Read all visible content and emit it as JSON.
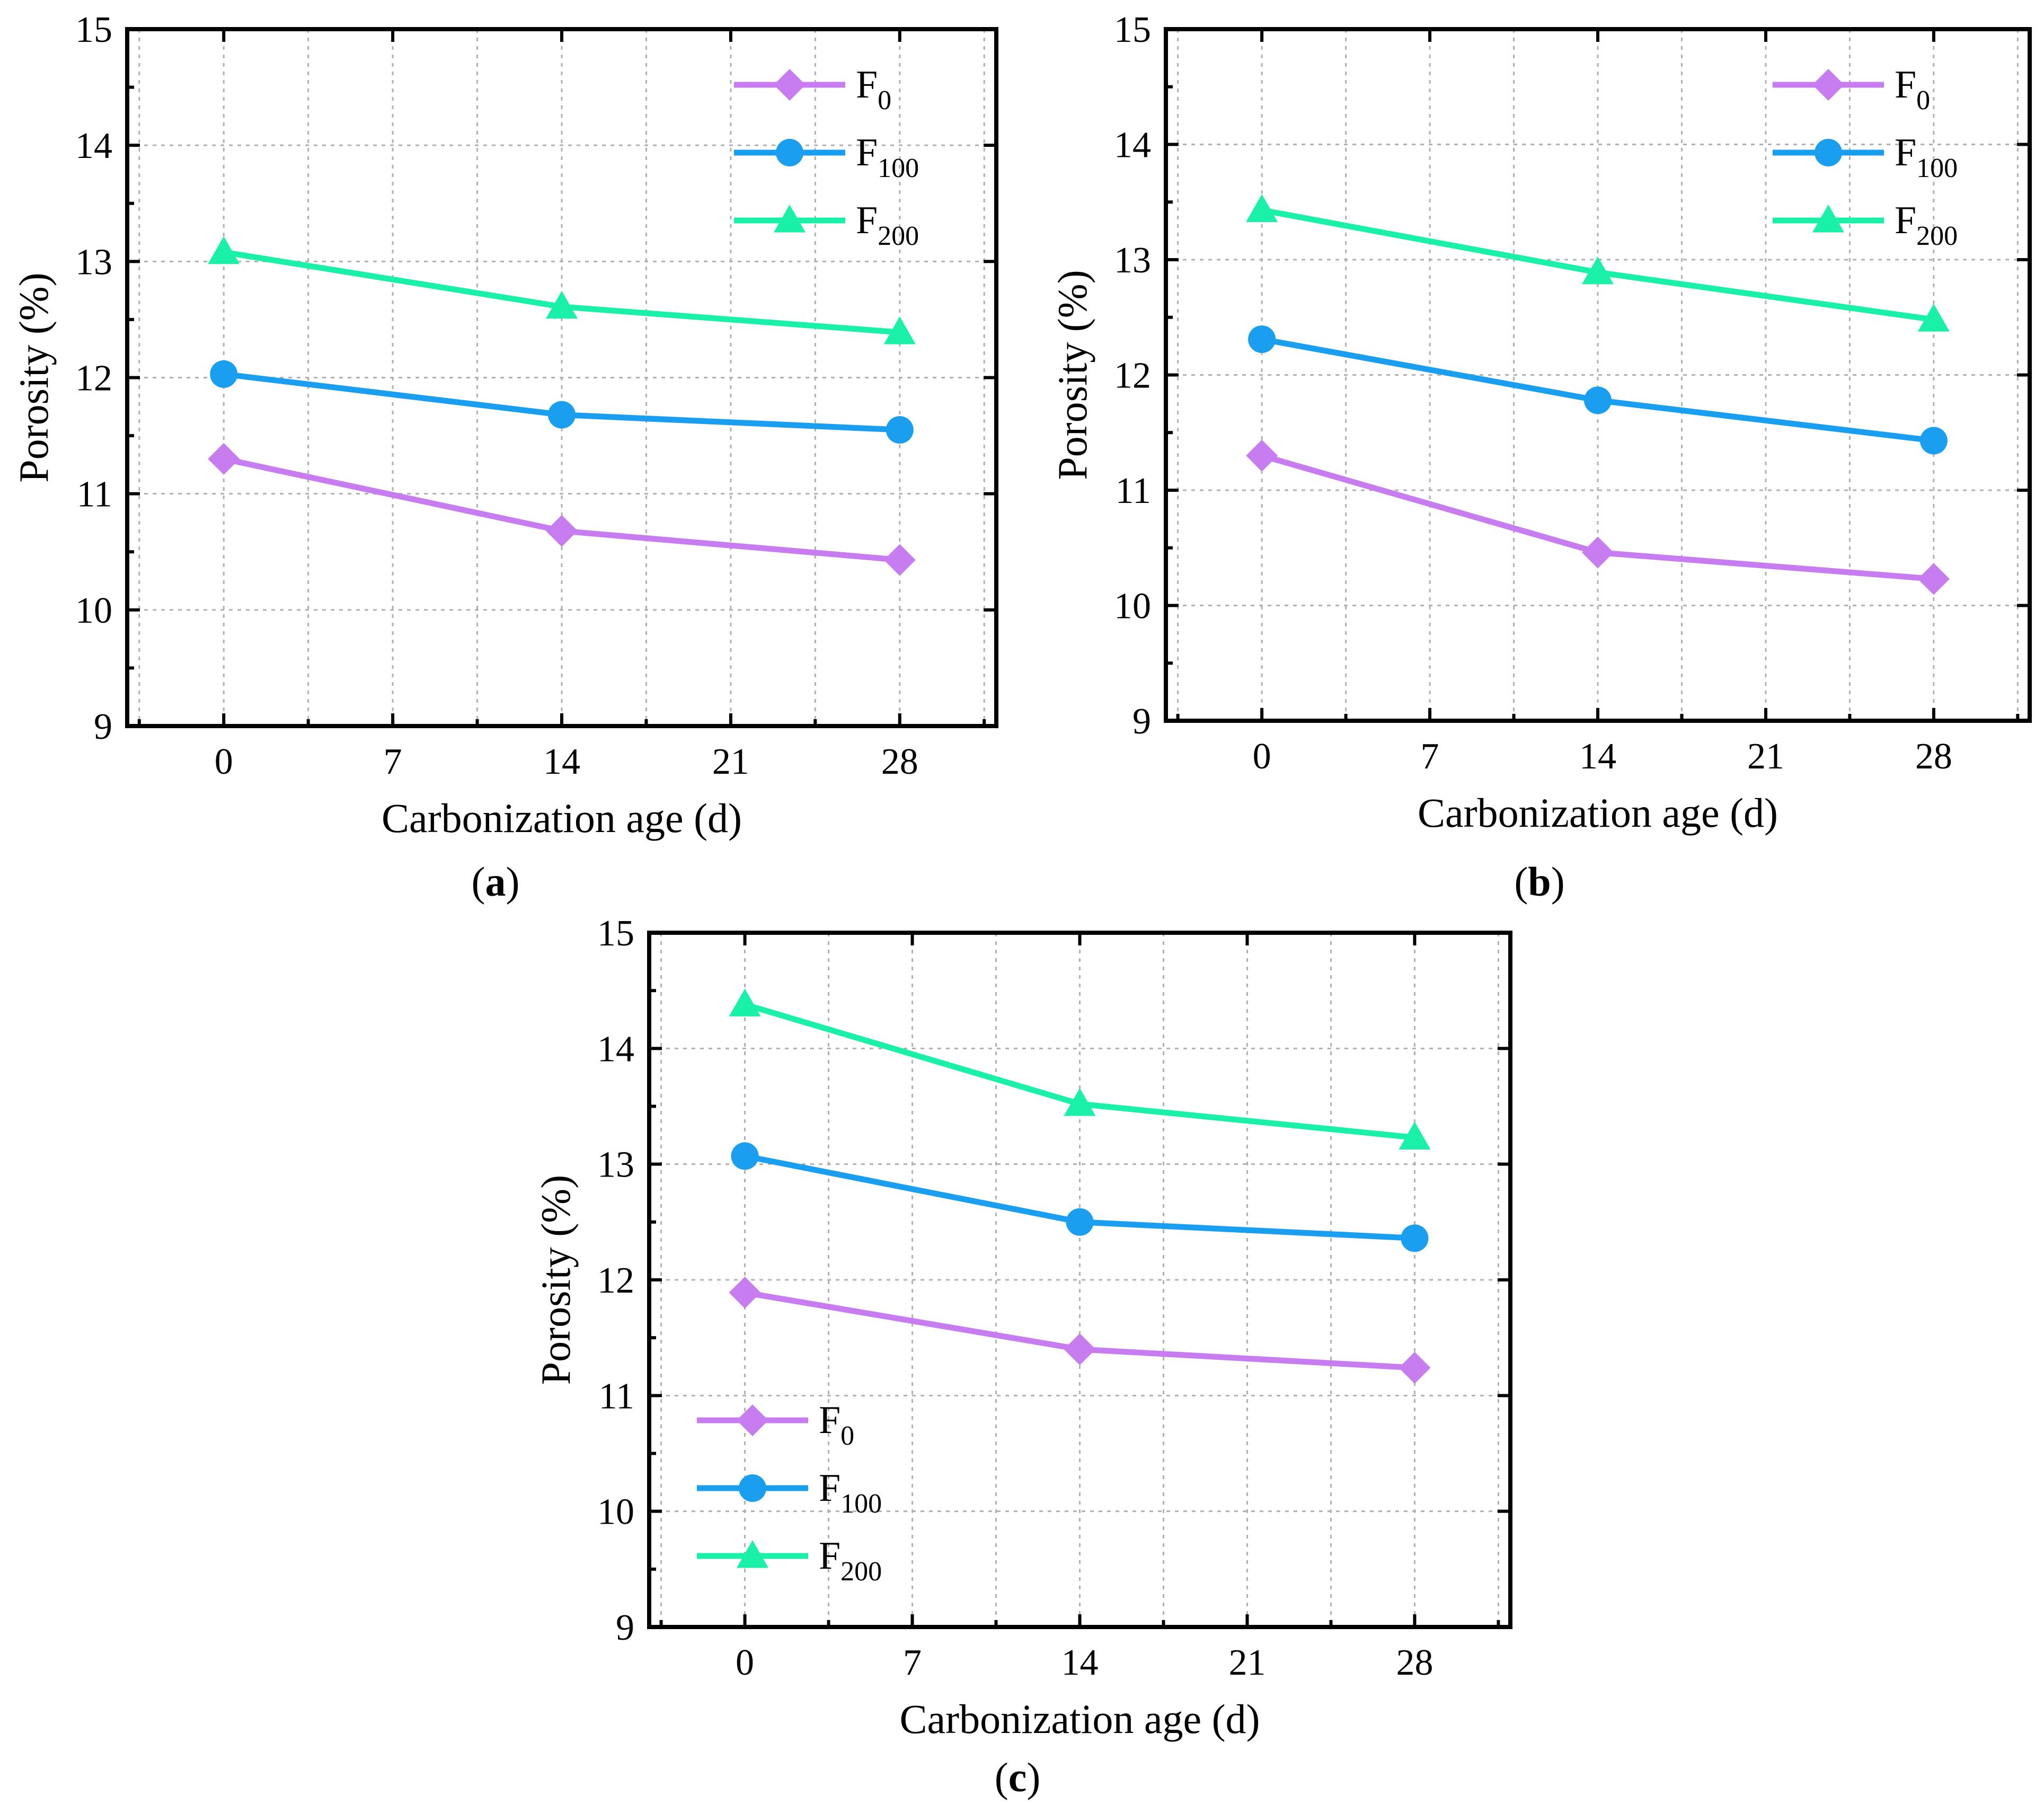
{
  "figure": {
    "captions": [
      "a",
      "b",
      "c"
    ]
  },
  "colors": {
    "F0": "#c77cf0",
    "F100": "#1a9ff0",
    "F200": "#19f0a8"
  },
  "chart_data": [
    {
      "panel": "a",
      "type": "line",
      "xlabel": "Carbonization age (d)",
      "ylabel": "Porosity (%)",
      "x": [
        0,
        14,
        28
      ],
      "xlim": [
        -4,
        32
      ],
      "ylim": [
        9,
        15
      ],
      "xticks": [
        0,
        7,
        14,
        21,
        28
      ],
      "yticks": [
        9,
        10,
        11,
        12,
        13,
        14,
        15
      ],
      "grid": true,
      "legend_position": "top-right",
      "series": [
        {
          "name": "F",
          "sub": "0",
          "key": "F0",
          "marker": "diamond",
          "values": [
            11.3,
            10.68,
            10.43
          ]
        },
        {
          "name": "F",
          "sub": "100",
          "key": "F100",
          "marker": "circle",
          "values": [
            12.03,
            11.68,
            11.55
          ]
        },
        {
          "name": "F",
          "sub": "200",
          "key": "F200",
          "marker": "triangle",
          "values": [
            13.08,
            12.61,
            12.39
          ]
        }
      ]
    },
    {
      "panel": "b",
      "type": "line",
      "xlabel": "Carbonization age (d)",
      "ylabel": "Porosity (%)",
      "x": [
        0,
        14,
        28
      ],
      "xlim": [
        -4,
        32
      ],
      "ylim": [
        9,
        15
      ],
      "xticks": [
        0,
        7,
        14,
        21,
        28
      ],
      "yticks": [
        9,
        10,
        11,
        12,
        13,
        14,
        15
      ],
      "grid": true,
      "legend_position": "top-right",
      "series": [
        {
          "name": "F",
          "sub": "0",
          "key": "F0",
          "marker": "diamond",
          "values": [
            11.3,
            10.46,
            10.23
          ]
        },
        {
          "name": "F",
          "sub": "100",
          "key": "F100",
          "marker": "circle",
          "values": [
            12.31,
            11.78,
            11.43
          ]
        },
        {
          "name": "F",
          "sub": "200",
          "key": "F200",
          "marker": "triangle",
          "values": [
            13.43,
            12.89,
            12.48
          ]
        }
      ]
    },
    {
      "panel": "c",
      "type": "line",
      "xlabel": "Carbonization age (d)",
      "ylabel": "Porosity (%)",
      "x": [
        0,
        14,
        28
      ],
      "xlim": [
        -4,
        32
      ],
      "ylim": [
        9,
        15
      ],
      "xticks": [
        0,
        7,
        14,
        21,
        28
      ],
      "yticks": [
        9,
        10,
        11,
        12,
        13,
        14,
        15
      ],
      "grid": true,
      "legend_position": "bottom-left",
      "series": [
        {
          "name": "F",
          "sub": "0",
          "key": "F0",
          "marker": "diamond",
          "values": [
            11.89,
            11.4,
            11.24
          ]
        },
        {
          "name": "F",
          "sub": "100",
          "key": "F100",
          "marker": "circle",
          "values": [
            13.07,
            12.5,
            12.36
          ]
        },
        {
          "name": "F",
          "sub": "200",
          "key": "F200",
          "marker": "triangle",
          "values": [
            14.38,
            13.52,
            13.23
          ]
        }
      ]
    }
  ]
}
